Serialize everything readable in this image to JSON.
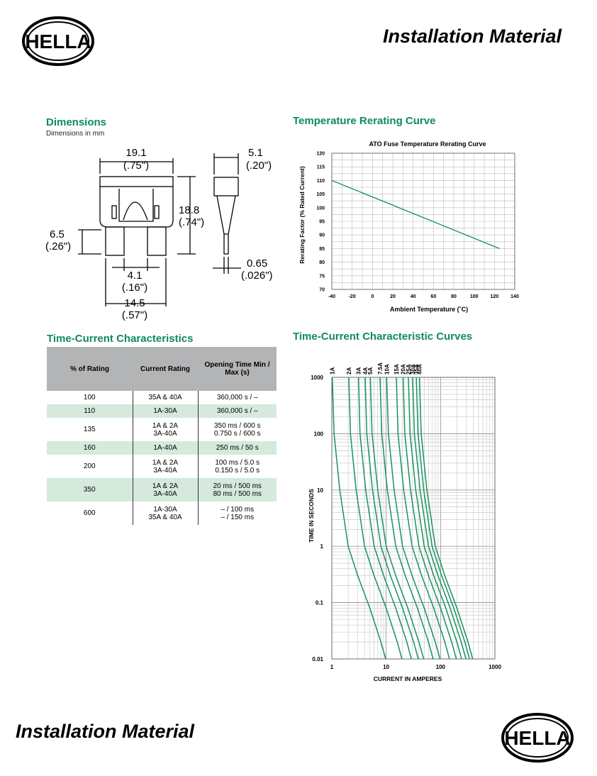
{
  "header": {
    "brand": "HELLA",
    "title": "Installation Material"
  },
  "footer": {
    "title": "Installation Material",
    "brand": "HELLA"
  },
  "dimensions": {
    "title": "Dimensions",
    "subtitle": "Dimensions in mm",
    "labels": {
      "width_mm": "19.1",
      "width_in": "(.75\")",
      "thick_mm": "5.1",
      "thick_in": "(.20\")",
      "height_mm": "18.8",
      "height_in": "(.74\")",
      "blade_len_mm": "6.5",
      "blade_len_in": "(.26\")",
      "gap_mm": "4.1",
      "gap_in": "(.16\")",
      "span_mm": "14.5",
      "span_in": "(.57\")",
      "blade_thick_mm": "0.65",
      "blade_thick_in": "(.026\")"
    }
  },
  "rerating": {
    "section_title": "Temperature Rerating Curve",
    "chart_data": {
      "type": "line",
      "title": "ATO Fuse Temperature Rerating Curve",
      "xlabel": "Ambient Temperature (˚C)",
      "ylabel": "Rerating Factor (% Rated Current)",
      "xlim": [
        -40,
        140
      ],
      "ylim": [
        70,
        120
      ],
      "xticks": [
        "-40",
        "-20",
        "0",
        "20",
        "40",
        "60",
        "80",
        "100",
        "120",
        "140"
      ],
      "yticks": [
        "70",
        "75",
        "80",
        "85",
        "90",
        "95",
        "100",
        "105",
        "110",
        "115",
        "120"
      ],
      "grid": true,
      "series": [
        {
          "x": [
            -40,
            125
          ],
          "y": [
            110,
            85
          ]
        }
      ]
    }
  },
  "time_current": {
    "section_title": "Time-Current Characteristics",
    "columns": [
      "% of Rating",
      "Current Rating",
      "Opening Time Min / Max (s)"
    ],
    "rows": [
      {
        "pct": "100",
        "rating": [
          "35A & 40A"
        ],
        "time": [
          "360,000 s / –"
        ]
      },
      {
        "pct": "110",
        "rating": [
          "1A-30A"
        ],
        "time": [
          "360,000 s / –"
        ]
      },
      {
        "pct": "135",
        "rating": [
          "1A & 2A",
          "3A-40A"
        ],
        "time": [
          "350 ms / 600 s",
          "0.750 s / 600 s"
        ]
      },
      {
        "pct": "160",
        "rating": [
          "1A-40A"
        ],
        "time": [
          "250 ms / 50 s"
        ]
      },
      {
        "pct": "200",
        "rating": [
          "1A & 2A",
          "3A-40A"
        ],
        "time": [
          "100 ms / 5.0 s",
          "0.150 s / 5.0 s"
        ]
      },
      {
        "pct": "350",
        "rating": [
          "1A & 2A",
          "3A-40A"
        ],
        "time": [
          "20 ms / 500 ms",
          "80 ms / 500 ms"
        ]
      },
      {
        "pct": "600",
        "rating": [
          "1A-30A",
          "35A & 40A"
        ],
        "time": [
          "– / 100 ms",
          "– / 150 ms"
        ]
      }
    ]
  },
  "curves": {
    "section_title": "Time-Current Characteristic Curves",
    "chart_data": {
      "type": "line",
      "xlabel": "CURRENT IN AMPERES",
      "ylabel": "TIME IN SECONDS",
      "xscale": "log",
      "yscale": "log",
      "xlim": [
        1,
        1000
      ],
      "ylim": [
        0.01,
        1000
      ],
      "xticks": [
        "1",
        "10",
        "100",
        "1000"
      ],
      "yticks": [
        "1000",
        "100",
        "10",
        "1",
        "0.1",
        "0.01"
      ],
      "grid": true,
      "series": [
        {
          "name": "1A",
          "x": [
            1.02,
            1.1,
            1.4,
            2.0,
            3.0,
            5.0,
            8.0,
            9.8
          ],
          "y": [
            1000,
            100,
            10,
            1,
            0.3,
            0.08,
            0.02,
            0.01
          ]
        },
        {
          "name": "2A",
          "x": [
            2.05,
            2.2,
            2.8,
            4.0,
            6.0,
            10.0,
            16.0,
            19.5
          ],
          "y": [
            1000,
            100,
            10,
            1,
            0.3,
            0.08,
            0.02,
            0.01
          ]
        },
        {
          "name": "3A",
          "x": [
            3.1,
            3.3,
            4.2,
            6.0,
            9.0,
            15.0,
            24.0,
            29.0
          ],
          "y": [
            1000,
            100,
            10,
            1,
            0.3,
            0.08,
            0.02,
            0.01
          ]
        },
        {
          "name": "4A",
          "x": [
            4.1,
            4.4,
            5.6,
            8.0,
            12.0,
            20.0,
            32.0,
            39.0
          ],
          "y": [
            1000,
            100,
            10,
            1,
            0.3,
            0.08,
            0.02,
            0.01
          ]
        },
        {
          "name": "5A",
          "x": [
            5.1,
            5.5,
            7.0,
            10.0,
            15.0,
            25.0,
            40.0,
            49.0
          ],
          "y": [
            1000,
            100,
            10,
            1,
            0.3,
            0.08,
            0.02,
            0.01
          ]
        },
        {
          "name": "7.5A",
          "x": [
            7.7,
            8.3,
            10.5,
            15.0,
            22.5,
            37.5,
            60.0,
            73.0
          ],
          "y": [
            1000,
            100,
            10,
            1,
            0.3,
            0.08,
            0.02,
            0.01
          ]
        },
        {
          "name": "10A",
          "x": [
            10.2,
            11.0,
            14.0,
            20.0,
            30.0,
            50.0,
            80.0,
            98.0
          ],
          "y": [
            1000,
            100,
            10,
            1,
            0.3,
            0.08,
            0.02,
            0.01
          ]
        },
        {
          "name": "15A",
          "x": [
            15.4,
            16.5,
            21.0,
            30.0,
            45.0,
            75.0,
            120.0,
            146.0
          ],
          "y": [
            1000,
            100,
            10,
            1,
            0.3,
            0.08,
            0.02,
            0.01
          ]
        },
        {
          "name": "20A",
          "x": [
            20.5,
            22.0,
            28.0,
            40.0,
            60.0,
            100.0,
            160.0,
            195.0
          ],
          "y": [
            1000,
            100,
            10,
            1,
            0.3,
            0.08,
            0.02,
            0.01
          ]
        },
        {
          "name": "25A",
          "x": [
            25.6,
            27.5,
            35.0,
            50.0,
            75.0,
            125.0,
            200.0,
            244.0
          ],
          "y": [
            1000,
            100,
            10,
            1,
            0.3,
            0.08,
            0.02,
            0.01
          ]
        },
        {
          "name": "30A",
          "x": [
            30.7,
            33.0,
            42.0,
            60.0,
            90.0,
            150.0,
            240.0,
            293.0
          ],
          "y": [
            1000,
            100,
            10,
            1,
            0.3,
            0.08,
            0.02,
            0.01
          ]
        },
        {
          "name": "35A",
          "x": [
            35.8,
            38.5,
            49.0,
            70.0,
            105.0,
            175.0,
            280.0,
            341.0
          ],
          "y": [
            1000,
            100,
            10,
            1,
            0.3,
            0.08,
            0.02,
            0.01
          ]
        },
        {
          "name": "40A",
          "x": [
            41.0,
            44.0,
            56.0,
            80.0,
            120.0,
            200.0,
            320.0,
            390.0
          ],
          "y": [
            1000,
            100,
            10,
            1,
            0.3,
            0.08,
            0.02,
            0.01
          ]
        }
      ]
    }
  },
  "colors": {
    "accent_green": "#0f8a5e",
    "curve_green": "#17925f",
    "table_header": "#b3b4b6",
    "row_tint": "#d5e9dd"
  }
}
